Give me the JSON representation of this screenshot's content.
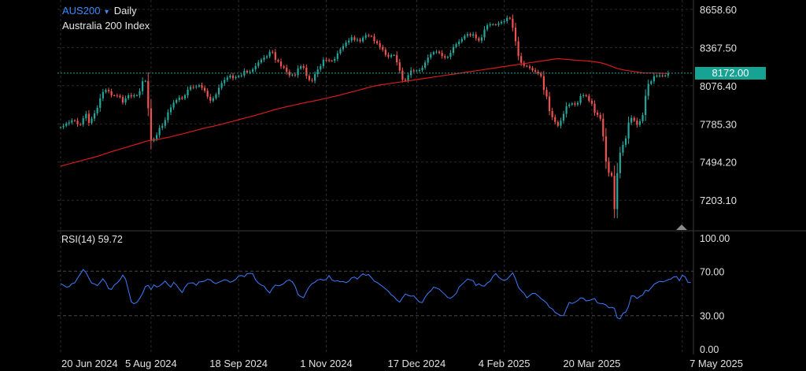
{
  "header": {
    "symbol": "AUS200",
    "caret": "▾",
    "timeframe": "Daily",
    "instrument": "Australia 200 Index"
  },
  "colors": {
    "up": "#26a69a",
    "down": "#ef5350",
    "ma": "#d81b1b",
    "rsi": "#3d7bff",
    "price_line": "#17a394",
    "grid": "#2b2b2b"
  },
  "current_price": {
    "label": "8172.00",
    "value": 8172
  },
  "rsi": {
    "title": "RSI(14)",
    "value_label": "59.72"
  },
  "chart_data": [
    {
      "type": "candlestick",
      "title": "",
      "y_ticks": [
        "8658.60",
        "8367.50",
        "8076.40",
        "7785.30",
        "7494.20",
        "7203.10"
      ],
      "ylim": [
        6970,
        8730
      ],
      "x_ticks": [
        "20 Jun 2024",
        "5 Aug 2024",
        "18 Sep 2024",
        "1 Nov 2024",
        "17 Dec 2024",
        "4 Feb 2025",
        "20 Mar 2025",
        "7 May 2025"
      ],
      "x_tick_positions": [
        0,
        32,
        63,
        94,
        126,
        157,
        188,
        220
      ],
      "close_series": [
        7760,
        7771,
        7788,
        7796,
        7812,
        7809,
        7783,
        7781,
        7828,
        7862,
        7793,
        7826,
        7866,
        7908,
        7980,
        8028,
        8044,
        8034,
        8003,
        8002,
        8000,
        7990,
        7948,
        7980,
        8004,
        7995,
        8003,
        8004,
        8035,
        8110,
        8113,
        7904,
        7655,
        7671,
        7700,
        7755,
        7771,
        7814,
        7874,
        7910,
        7947,
        7968,
        7986,
        7978,
        8003,
        8047,
        8067,
        8064,
        8070,
        8080,
        8060,
        8038,
        7992,
        7962,
        7981,
        8010,
        8060,
        8096,
        8120,
        8139,
        8154,
        8134,
        8142,
        8152,
        8155,
        8190,
        8178,
        8183,
        8201,
        8227,
        8254,
        8275,
        8291,
        8300,
        8335,
        8332,
        8273,
        8261,
        8224,
        8213,
        8182,
        8155,
        8161,
        8157,
        8207,
        8225,
        8213,
        8151,
        8120,
        8114,
        8164,
        8200,
        8225,
        8274,
        8272,
        8267,
        8266,
        8281,
        8323,
        8354,
        8379,
        8406,
        8421,
        8446,
        8425,
        8428,
        8415,
        8443,
        8462,
        8456,
        8452,
        8416,
        8400,
        8372,
        8351,
        8312,
        8298,
        8309,
        8310,
        8255,
        8192,
        8122,
        8117,
        8157,
        8193,
        8189,
        8192,
        8195,
        8214,
        8253,
        8291,
        8317,
        8332,
        8336,
        8326,
        8302,
        8290,
        8297,
        8327,
        8372,
        8393,
        8413,
        8433,
        8457,
        8470,
        8458,
        8468,
        8438,
        8420,
        8445,
        8505,
        8537,
        8544,
        8544,
        8540,
        8552,
        8564,
        8568,
        8594,
        8587,
        8519,
        8415,
        8302,
        8251,
        8228,
        8223,
        8212,
        8193,
        8183,
        8170,
        8149,
        8044,
        7994,
        7883,
        7837,
        7799,
        7771,
        7810,
        7862,
        7920,
        7932,
        7941,
        7932,
        7946,
        7997,
        8003,
        7999,
        7962,
        7939,
        7871,
        7854,
        7825,
        7690,
        7498,
        7412,
        7390,
        7136,
        7410,
        7566,
        7625,
        7674,
        7795,
        7831,
        7810,
        7778,
        7806,
        7853,
        7999,
        8090,
        8110,
        8148,
        8153,
        8154,
        8151,
        8154,
        8172
      ]
    },
    {
      "type": "line",
      "title": "",
      "series": [
        {
          "name": "RSI(14)",
          "values": [
            58.8,
            57.4,
            55.7,
            56.1,
            58.8,
            59.5,
            63.7,
            67.5,
            71.5,
            68.8,
            63.8,
            59.2,
            58.5,
            57.0,
            60.0,
            63.2,
            59.8,
            54.2,
            53.6,
            57.5,
            59.4,
            62.2,
            66.5,
            62.8,
            52.8,
            42.4,
            40.8,
            42.0,
            45.5,
            49.9,
            56.2,
            57.3,
            53.4,
            57.7,
            55.8,
            56.7,
            58.7,
            61.2,
            58.1,
            55.6,
            60.0,
            57.5,
            53.8,
            50.7,
            55.5,
            58.7,
            59.4,
            59.5,
            57.3,
            60.3,
            60.6,
            61.1,
            62.8,
            62.3,
            59.9,
            58.8,
            60.1,
            61.1,
            62.4,
            61.7,
            60.1,
            61.0,
            62.7,
            65.7,
            66.2,
            65.0,
            67.7,
            68.1,
            67.7,
            62.3,
            59.2,
            57.6,
            56.5,
            52.9,
            50.4,
            54.7,
            57.6,
            56.9,
            57.5,
            58.9,
            61.5,
            62.1,
            60.4,
            56.4,
            49.0,
            47.2,
            46.1,
            51.5,
            56.1,
            58.9,
            60.1,
            62.2,
            62.8,
            61.8,
            62.6,
            66.0,
            62.2,
            60.9,
            61.5,
            60.4,
            60.7,
            59.7,
            61.0,
            64.0,
            64.7,
            62.9,
            65.5,
            67.7,
            66.3,
            67.0,
            64.2,
            61.0,
            59.8,
            58.0,
            56.1,
            54.1,
            51.9,
            48.8,
            47.0,
            44.0,
            42.1,
            46.2,
            49.5,
            48.2,
            47.5,
            47.8,
            44.8,
            42.2,
            41.8,
            46.6,
            50.1,
            52.3,
            55.6,
            54.8,
            53.9,
            51.3,
            49.1,
            46.3,
            45.7,
            47.5,
            50.0,
            55.7,
            58.1,
            60.5,
            63.0,
            62.2,
            61.5,
            57.1,
            58.7,
            56.9,
            56.7,
            59.4,
            61.0,
            65.3,
            67.9,
            64.7,
            62.6,
            61.7,
            62.7,
            65.7,
            68.5,
            62.9,
            55.6,
            52.4,
            50.1,
            46.0,
            48.1,
            50.0,
            49.9,
            47.9,
            45.4,
            43.5,
            41.4,
            37.4,
            36.1,
            32.9,
            31.4,
            30.1,
            30.0,
            36.1,
            41.9,
            41.0,
            42.0,
            43.6,
            46.0,
            45.7,
            43.2,
            43.6,
            44.5,
            45.4,
            41.4,
            40.9,
            40.8,
            39.6,
            37.1,
            37.5,
            36.6,
            28.0,
            27.1,
            32.2,
            33.2,
            38.6,
            47.8,
            47.6,
            45.4,
            47.4,
            48.5,
            52.9,
            52.1,
            54.9,
            58.2,
            59.6,
            61.0,
            60.4,
            61.1,
            62.4,
            62.9,
            64.9,
            65.1,
            61.4,
            66.4,
            65.0,
            60.0,
            59.7
          ]
        }
      ],
      "y_ticks": [
        "100.00",
        "70.00",
        "30.00",
        "0.00"
      ],
      "ylim": [
        0,
        100
      ],
      "x_ticks": [
        "20 Jun 2024",
        "5 Aug 2024",
        "18 Sep 2024",
        "1 Nov 2024",
        "17 Dec 2024",
        "4 Feb 2025",
        "20 Mar 2025",
        "7 May 2025"
      ]
    }
  ]
}
